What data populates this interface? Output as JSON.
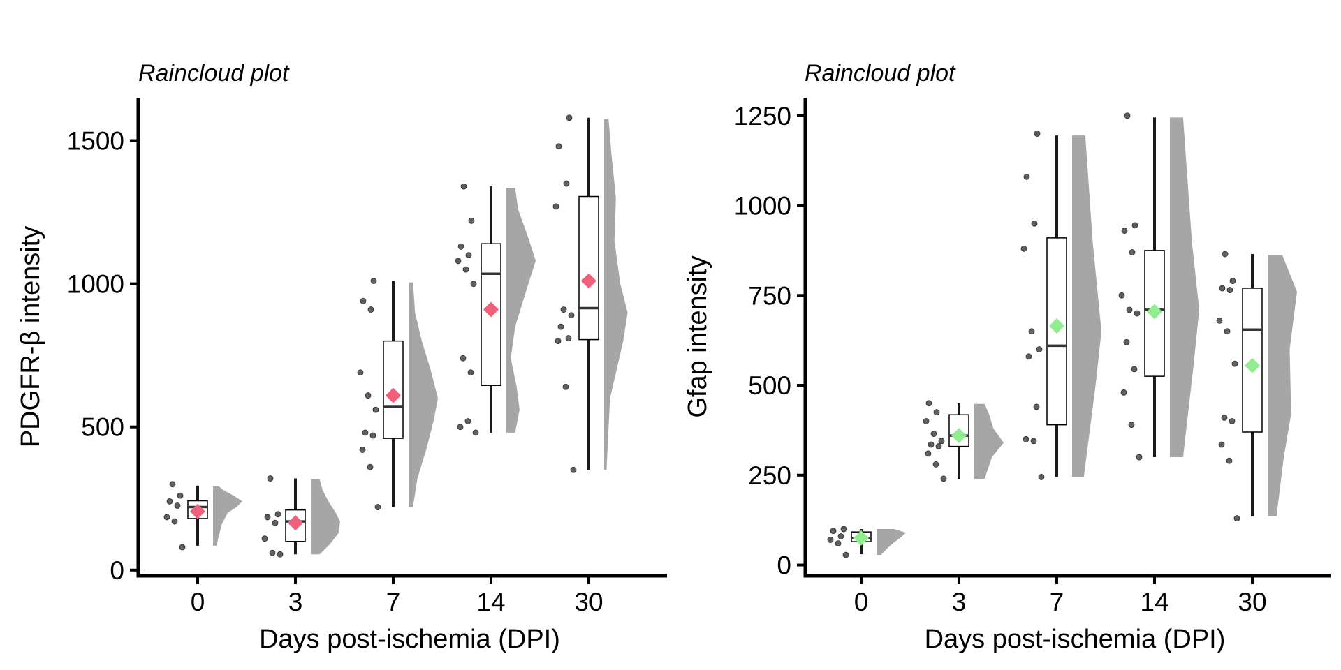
{
  "chart_data": [
    {
      "type": "raincloud",
      "title": "Raincloud plot",
      "xlabel": "Days post-ischemia (DPI)",
      "ylabel": "PDGFR-β intensity",
      "categories": [
        "0",
        "3",
        "7",
        "14",
        "30"
      ],
      "ylim": [
        -20,
        1650
      ],
      "yticks": [
        0,
        500,
        1000,
        1500
      ],
      "grid": false,
      "legend": "none",
      "mean_color": "#F0607A",
      "point_color": "#606060",
      "cloud_color": "#a6a6a6",
      "groups": [
        {
          "category": "0",
          "points": [
            80,
            170,
            185,
            225,
            240,
            260,
            300
          ],
          "box": {
            "min": 85,
            "q1": 180,
            "median": 220,
            "q3": 242,
            "max": 295
          },
          "mean": 205,
          "cloud": [
            [
              85,
              0.12
            ],
            [
              120,
              0.2
            ],
            [
              160,
              0.3
            ],
            [
              200,
              0.5
            ],
            [
              220,
              0.8
            ],
            [
              240,
              1.0
            ],
            [
              260,
              0.7
            ],
            [
              280,
              0.35
            ],
            [
              292,
              0.2
            ]
          ]
        },
        {
          "category": "3",
          "points": [
            55,
            60,
            110,
            165,
            185,
            195,
            320
          ],
          "box": {
            "min": 55,
            "q1": 100,
            "median": 170,
            "q3": 210,
            "max": 320
          },
          "mean": 165,
          "cloud": [
            [
              55,
              0.3
            ],
            [
              90,
              0.65
            ],
            [
              130,
              0.95
            ],
            [
              170,
              1.0
            ],
            [
              200,
              0.85
            ],
            [
              240,
              0.6
            ],
            [
              280,
              0.4
            ],
            [
              318,
              0.3
            ]
          ]
        },
        {
          "category": "7",
          "points": [
            220,
            360,
            420,
            470,
            480,
            560,
            610,
            690,
            910,
            940,
            1010
          ],
          "box": {
            "min": 220,
            "q1": 460,
            "median": 570,
            "q3": 800,
            "max": 1010
          },
          "mean": 610,
          "cloud": [
            [
              220,
              0.15
            ],
            [
              320,
              0.3
            ],
            [
              420,
              0.6
            ],
            [
              520,
              0.85
            ],
            [
              600,
              1.0
            ],
            [
              700,
              0.75
            ],
            [
              800,
              0.45
            ],
            [
              900,
              0.22
            ],
            [
              1005,
              0.15
            ]
          ]
        },
        {
          "category": "14",
          "points": [
            480,
            520,
            500,
            690,
            740,
            1000,
            1050,
            1080,
            1100,
            1130,
            1220,
            1340
          ],
          "box": {
            "min": 480,
            "q1": 645,
            "median": 1035,
            "q3": 1140,
            "max": 1340
          },
          "mean": 910,
          "cloud": [
            [
              480,
              0.3
            ],
            [
              560,
              0.45
            ],
            [
              640,
              0.35
            ],
            [
              740,
              0.15
            ],
            [
              850,
              0.3
            ],
            [
              1000,
              0.75
            ],
            [
              1080,
              1.0
            ],
            [
              1160,
              0.75
            ],
            [
              1260,
              0.4
            ],
            [
              1335,
              0.3
            ]
          ]
        },
        {
          "category": "30",
          "points": [
            350,
            640,
            800,
            810,
            850,
            890,
            910,
            1270,
            1350,
            1480,
            1580
          ],
          "box": {
            "min": 350,
            "q1": 805,
            "median": 915,
            "q3": 1305,
            "max": 1580
          },
          "mean": 1010,
          "cloud": [
            [
              350,
              0.08
            ],
            [
              600,
              0.2
            ],
            [
              800,
              0.65
            ],
            [
              900,
              0.8
            ],
            [
              1000,
              0.55
            ],
            [
              1150,
              0.35
            ],
            [
              1300,
              0.4
            ],
            [
              1450,
              0.25
            ],
            [
              1575,
              0.15
            ]
          ]
        }
      ]
    },
    {
      "type": "raincloud",
      "title": "Raincloud plot",
      "xlabel": "Days post-ischemia (DPI)",
      "ylabel": "Gfap intensity",
      "categories": [
        "0",
        "3",
        "7",
        "14",
        "30"
      ],
      "ylim": [
        -30,
        1300
      ],
      "yticks": [
        0,
        250,
        500,
        750,
        1000,
        1250
      ],
      "grid": false,
      "legend": "none",
      "mean_color": "#90EE90",
      "point_color": "#606060",
      "cloud_color": "#a6a6a6",
      "groups": [
        {
          "category": "0",
          "points": [
            28,
            60,
            70,
            80,
            95,
            100
          ],
          "box": {
            "min": 30,
            "q1": 65,
            "median": 75,
            "q3": 92,
            "max": 100
          },
          "mean": 75,
          "cloud": [
            [
              28,
              0.15
            ],
            [
              45,
              0.35
            ],
            [
              60,
              0.55
            ],
            [
              75,
              0.8
            ],
            [
              90,
              1.0
            ],
            [
              100,
              0.6
            ]
          ]
        },
        {
          "category": "3",
          "points": [
            240,
            280,
            310,
            330,
            335,
            345,
            365,
            400,
            425,
            450
          ],
          "box": {
            "min": 240,
            "q1": 330,
            "median": 360,
            "q3": 418,
            "max": 450
          },
          "mean": 360,
          "cloud": [
            [
              240,
              0.35
            ],
            [
              300,
              0.6
            ],
            [
              340,
              1.0
            ],
            [
              380,
              0.65
            ],
            [
              420,
              0.5
            ],
            [
              448,
              0.35
            ]
          ]
        },
        {
          "category": "7",
          "points": [
            245,
            345,
            350,
            440,
            580,
            600,
            650,
            880,
            950,
            1080,
            1200
          ],
          "box": {
            "min": 245,
            "q1": 390,
            "median": 610,
            "q3": 910,
            "max": 1195
          },
          "mean": 665,
          "cloud": [
            [
              245,
              0.4
            ],
            [
              500,
              0.8
            ],
            [
              650,
              1.0
            ],
            [
              900,
              0.7
            ],
            [
              1195,
              0.45
            ]
          ]
        },
        {
          "category": "14",
          "points": [
            300,
            390,
            480,
            545,
            620,
            700,
            710,
            750,
            870,
            930,
            945,
            1250
          ],
          "box": {
            "min": 300,
            "q1": 525,
            "median": 710,
            "q3": 875,
            "max": 1245
          },
          "mean": 705,
          "cloud": [
            [
              300,
              0.45
            ],
            [
              550,
              0.8
            ],
            [
              710,
              1.0
            ],
            [
              900,
              0.75
            ],
            [
              1245,
              0.45
            ]
          ]
        },
        {
          "category": "30",
          "points": [
            130,
            290,
            335,
            400,
            410,
            560,
            650,
            680,
            765,
            770,
            790,
            865
          ],
          "box": {
            "min": 135,
            "q1": 370,
            "median": 655,
            "q3": 770,
            "max": 865
          },
          "mean": 555,
          "cloud": [
            [
              135,
              0.3
            ],
            [
              300,
              0.55
            ],
            [
              420,
              0.8
            ],
            [
              600,
              0.75
            ],
            [
              760,
              1.0
            ],
            [
              862,
              0.5
            ]
          ]
        }
      ]
    }
  ]
}
